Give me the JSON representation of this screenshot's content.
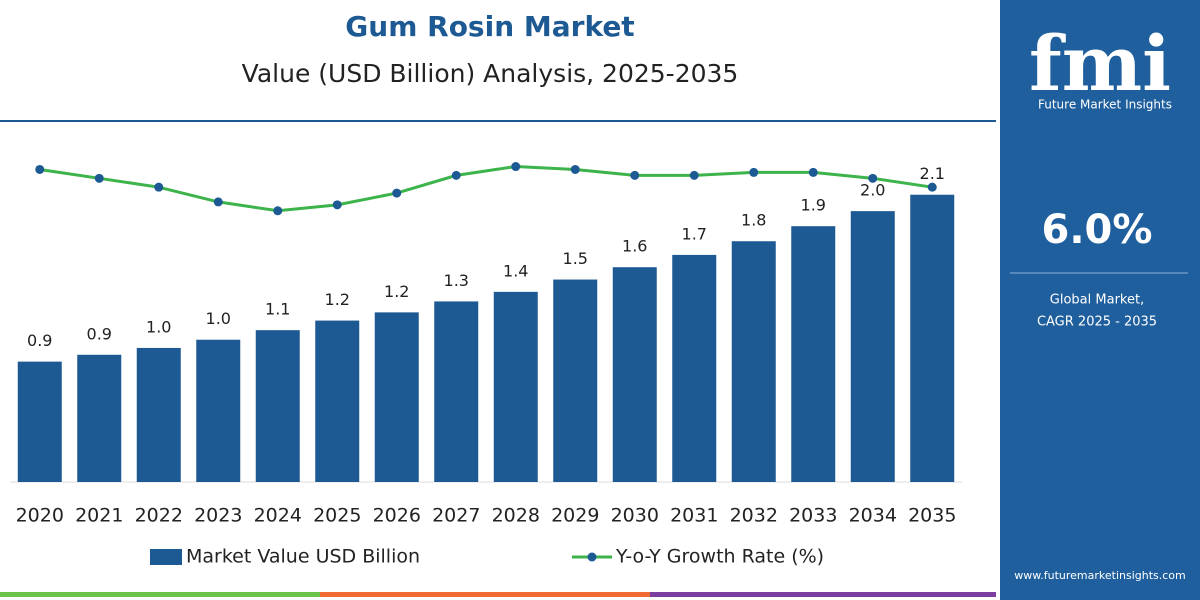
{
  "chart_data": {
    "type": "bar-line",
    "title": "Gum Rosin Market",
    "subtitle": "Value (USD Billion) Analysis, 2025-2035",
    "categories": [
      "2020",
      "2021",
      "2022",
      "2023",
      "2024",
      "2025",
      "2026",
      "2027",
      "2028",
      "2029",
      "2030",
      "2031",
      "2032",
      "2033",
      "2034",
      "2035"
    ],
    "series": [
      {
        "name": "Market Value USD Billion",
        "color": "#1d5a93",
        "type": "bar",
        "values": [
          0.88,
          0.93,
          0.98,
          1.04,
          1.11,
          1.18,
          1.24,
          1.32,
          1.39,
          1.48,
          1.57,
          1.66,
          1.76,
          1.87,
          1.98,
          2.1
        ],
        "value_labels": [
          "0.9",
          "0.9",
          "1.0",
          "1.0",
          "1.1",
          "1.2",
          "1.2",
          "1.3",
          "1.4",
          "1.5",
          "1.6",
          "1.7",
          "1.8",
          "1.9",
          "2.0",
          "2.1"
        ]
      },
      {
        "name": "Y-o-Y Growth Rate (%)",
        "color": "#3cb44b",
        "marker_color": "#1d5a93",
        "type": "line",
        "axis": "y2",
        "values": [
          6.6,
          6.3,
          6.0,
          5.5,
          5.2,
          5.4,
          5.8,
          6.4,
          6.7,
          6.6,
          6.4,
          6.4,
          6.5,
          6.5,
          6.3,
          6.0
        ]
      }
    ],
    "ylim": [
      0,
      2.5
    ],
    "y2lim": [
      -4,
      7.6
    ]
  },
  "sidebar": {
    "logo": "fmi",
    "brand": "Future Market Insights",
    "cagr": "6.0%",
    "cagr_caption_1": "Global Market,",
    "cagr_caption_2": "CAGR 2025 - 2035",
    "url": "www.futuremarketinsights.com"
  }
}
